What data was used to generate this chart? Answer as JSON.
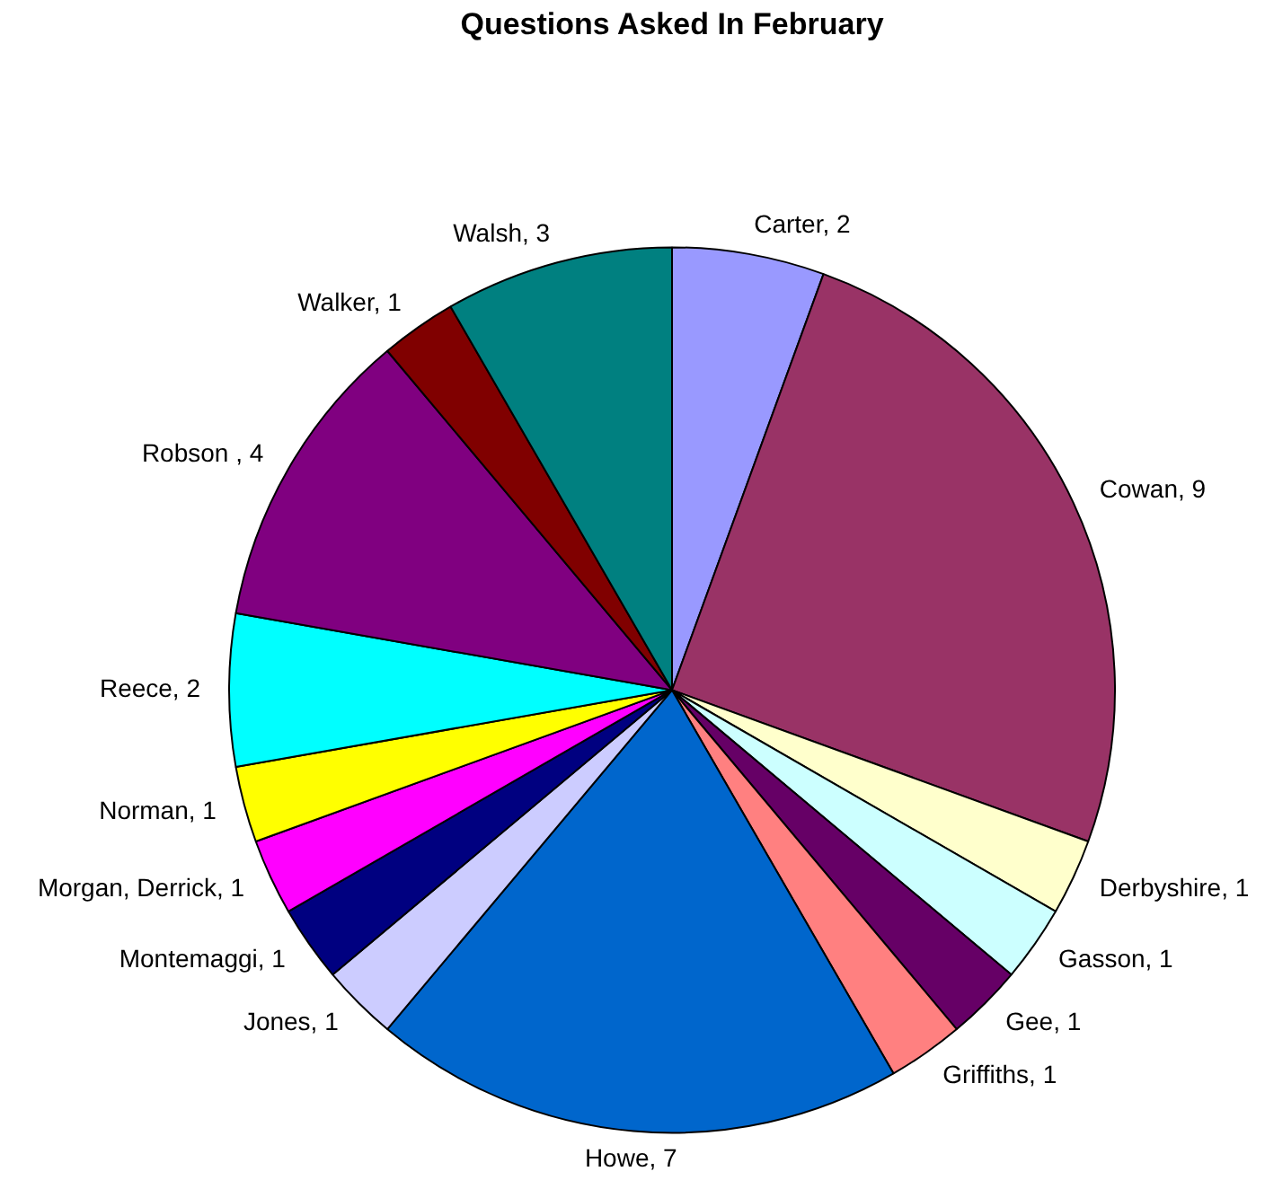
{
  "chart_data": {
    "type": "pie",
    "title": "Questions Asked In February",
    "categories": [
      "Carter, 2",
      "Cowan, 9",
      "Derbyshire, 1",
      "Gasson, 1",
      "Gee, 1",
      "Griffiths, 1",
      "Howe, 7",
      "Jones, 1",
      "Montemaggi, 1",
      "Morgan, Derrick, 1",
      "Norman, 1",
      "Reece, 2",
      "Robson , 4",
      "Walker, 1",
      "Walsh, 3"
    ],
    "values": [
      2,
      9,
      1,
      1,
      1,
      1,
      7,
      1,
      1,
      1,
      1,
      2,
      4,
      1,
      3
    ],
    "colors": [
      "#9999ff",
      "#993366",
      "#ffffcc",
      "#ccffff",
      "#660066",
      "#ff8080",
      "#0066cc",
      "#ccccff",
      "#000080",
      "#ff00ff",
      "#ffff00",
      "#00ffff",
      "#800080",
      "#800000",
      "#008080"
    ],
    "legend": false
  }
}
